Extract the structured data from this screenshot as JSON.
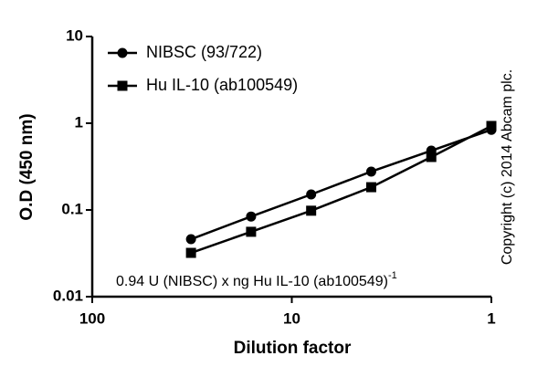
{
  "chart_data": {
    "type": "line",
    "xlabel": "Dilution factor",
    "ylabel": "O.D (450 nm)",
    "xscale": "log",
    "yscale": "log",
    "x": [
      32,
      16,
      8,
      4,
      2,
      1
    ],
    "series": [
      {
        "name": "NIBSC (93/722)",
        "color": "#000000",
        "marker": "circle",
        "values": [
          0.046,
          0.084,
          0.151,
          0.277,
          0.483,
          0.84
        ]
      },
      {
        "name": "Hu IL-10 (ab100549)",
        "color": "#000000",
        "marker": "square",
        "values": [
          0.032,
          0.056,
          0.098,
          0.183,
          0.408,
          0.93
        ]
      }
    ],
    "xlim": [
      100,
      1
    ],
    "xticks": [
      100,
      10,
      1
    ],
    "ylim": [
      0.01,
      10
    ],
    "yticks": [
      0.01,
      0.1,
      1,
      10
    ],
    "legend": "upper left",
    "annotation": "0.94 U (NIBSC) x ng Hu IL-10 (ab100549)",
    "annotation_superscript": "-1",
    "copyright": "Copyright (c) 2014 Abcam plc."
  }
}
